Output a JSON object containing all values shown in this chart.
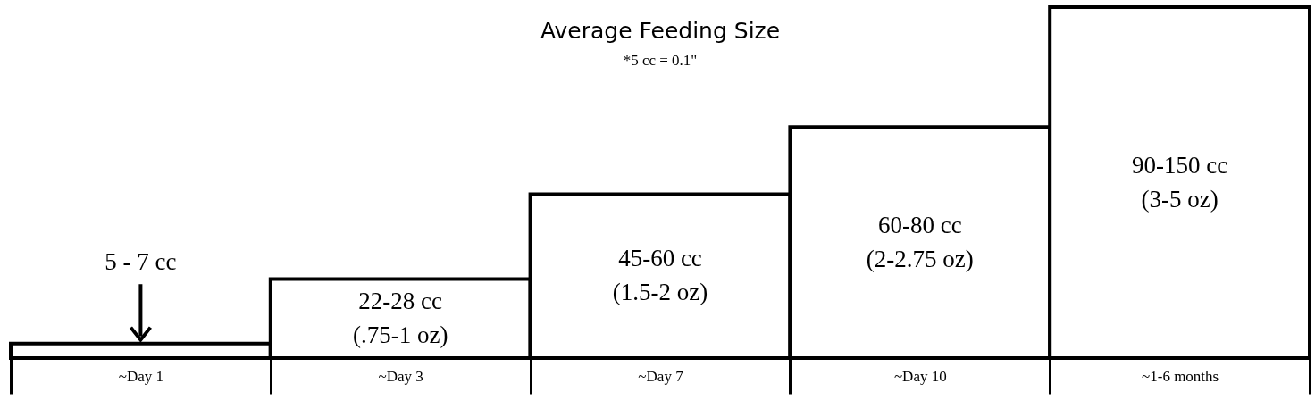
{
  "chart_data": {
    "type": "bar",
    "title": "Average Feeding Size",
    "subtitle": "*5 cc = 0.1\"",
    "ylim": [
      0,
      120
    ],
    "tick_labels": "x",
    "categories": [
      "~Day 1",
      "~Day 3",
      "~Day 7",
      "~Day 10",
      "~1-6 months"
    ],
    "values": [
      5,
      27,
      56,
      79,
      120
    ],
    "color": "#ffffff",
    "value_labels": [
      "5 - 7 cc",
      "22-28 cc\n(.75-1 oz)",
      "45-60 cc\n(1.5-2 oz)",
      "60-80 cc\n(2-2.75 oz)",
      "90-150 cc\n(3-5 oz)"
    ],
    "grid": false
  }
}
